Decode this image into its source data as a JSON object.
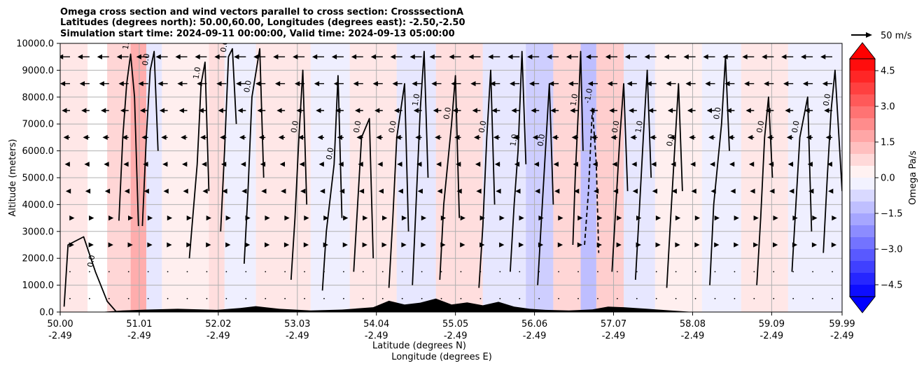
{
  "chart_data": {
    "type": "contour-cross-section",
    "title_lines": [
      "Omega cross section and wind vectors parallel to cross section: CrosssectionA",
      "Latitudes (degrees north): 50.00,60.00, Longitudes (degrees east): -2.50,-2.50",
      "Simulation start time: 2024-09-11 00:00:00, Valid time: 2024-09-13 05:00:00"
    ],
    "xlabel_lines": [
      "Latitude (degrees N)",
      "Longitude (degrees E)"
    ],
    "ylabel": "Altitude (meters)",
    "x_range": [
      50.0,
      59.99
    ],
    "x_ticks": [
      {
        "lat": "50.00",
        "lon": "-2.49",
        "value": 50.0
      },
      {
        "lat": "51.01",
        "lon": "-2.49",
        "value": 51.01
      },
      {
        "lat": "52.02",
        "lon": "-2.49",
        "value": 52.02
      },
      {
        "lat": "53.03",
        "lon": "-2.49",
        "value": 53.03
      },
      {
        "lat": "54.04",
        "lon": "-2.49",
        "value": 54.04
      },
      {
        "lat": "55.05",
        "lon": "-2.49",
        "value": 55.05
      },
      {
        "lat": "56.06",
        "lon": "-2.49",
        "value": 56.06
      },
      {
        "lat": "57.07",
        "lon": "-2.49",
        "value": 57.07
      },
      {
        "lat": "58.08",
        "lon": "-2.49",
        "value": 58.08
      },
      {
        "lat": "59.09",
        "lon": "-2.49",
        "value": 59.09
      },
      {
        "lat": "59.99",
        "lon": "-2.49",
        "value": 59.99
      }
    ],
    "y_range": [
      0,
      10000
    ],
    "y_ticks": [
      {
        "label": "0.0",
        "value": 0
      },
      {
        "label": "1000.0",
        "value": 1000
      },
      {
        "label": "2000.0",
        "value": 2000
      },
      {
        "label": "3000.0",
        "value": 3000
      },
      {
        "label": "4000.0",
        "value": 4000
      },
      {
        "label": "5000.0",
        "value": 5000
      },
      {
        "label": "6000.0",
        "value": 6000
      },
      {
        "label": "7000.0",
        "value": 7000
      },
      {
        "label": "8000.0",
        "value": 8000
      },
      {
        "label": "9000.0",
        "value": 9000
      },
      {
        "label": "10000.0",
        "value": 10000
      }
    ],
    "grid": true,
    "colorbar": {
      "label": "Omega Pa/s",
      "range": [
        -5.0,
        5.0
      ],
      "step": 0.5,
      "colormap": "bwr",
      "extend": "both",
      "ticks": [
        {
          "label": "4.5",
          "value": 4.5
        },
        {
          "label": "3.0",
          "value": 3.0
        },
        {
          "label": "1.5",
          "value": 1.5
        },
        {
          "label": "0.0",
          "value": 0.0
        },
        {
          "label": "−1.5",
          "value": -1.5
        },
        {
          "label": "−3.0",
          "value": -3.0
        },
        {
          "label": "−4.5",
          "value": -4.5
        }
      ]
    },
    "quiver_key": {
      "label": "50 m/s",
      "value": 50
    },
    "contour_labels": [
      "0.0",
      "1.0",
      "-1.0"
    ],
    "fill_bands": [
      {
        "x0": 50.0,
        "x1": 50.35,
        "omega": 0.3
      },
      {
        "x0": 50.35,
        "x1": 50.6,
        "omega": 0.0
      },
      {
        "x0": 50.6,
        "x1": 50.9,
        "omega": 0.5
      },
      {
        "x0": 50.9,
        "x1": 51.1,
        "omega": 1.0
      },
      {
        "x0": 51.1,
        "x1": 51.3,
        "omega": -0.3
      },
      {
        "x0": 51.3,
        "x1": 51.9,
        "omega": 0.2
      },
      {
        "x0": 51.9,
        "x1": 52.1,
        "omega": 0.4
      },
      {
        "x0": 52.1,
        "x1": 52.5,
        "omega": -0.2
      },
      {
        "x0": 52.5,
        "x1": 53.2,
        "omega": 0.3
      },
      {
        "x0": 53.2,
        "x1": 53.7,
        "omega": -0.2
      },
      {
        "x0": 53.7,
        "x1": 54.3,
        "omega": 0.3
      },
      {
        "x0": 54.3,
        "x1": 54.8,
        "omega": -0.3
      },
      {
        "x0": 54.8,
        "x1": 55.4,
        "omega": 0.4
      },
      {
        "x0": 55.4,
        "x1": 55.95,
        "omega": -0.3
      },
      {
        "x0": 55.95,
        "x1": 56.3,
        "omega": -0.6
      },
      {
        "x0": 56.3,
        "x1": 56.65,
        "omega": 0.5
      },
      {
        "x0": 56.65,
        "x1": 56.85,
        "omega": -0.8
      },
      {
        "x0": 56.85,
        "x1": 57.2,
        "omega": 0.6
      },
      {
        "x0": 57.2,
        "x1": 57.6,
        "omega": -0.3
      },
      {
        "x0": 57.6,
        "x1": 58.2,
        "omega": 0.2
      },
      {
        "x0": 58.2,
        "x1": 58.7,
        "omega": -0.2
      },
      {
        "x0": 58.7,
        "x1": 59.3,
        "omega": 0.3
      },
      {
        "x0": 59.3,
        "x1": 59.99,
        "omega": -0.2
      }
    ],
    "contour_lines": [
      {
        "level": 0.0,
        "x": [
          50.05,
          50.1,
          50.3,
          50.45,
          50.6,
          50.72
        ],
        "y": [
          200,
          2500,
          2800,
          1500,
          400,
          0
        ]
      },
      {
        "level": 1.0,
        "x": [
          50.75,
          50.8,
          50.85,
          50.9,
          50.95,
          51.0
        ],
        "y": [
          3400,
          6500,
          8500,
          9600,
          8000,
          3200
        ]
      },
      {
        "level": 0.0,
        "x": [
          51.05,
          51.1,
          51.15,
          51.2,
          51.25
        ],
        "y": [
          3200,
          6500,
          9000,
          9700,
          6000
        ]
      },
      {
        "level": 1.0,
        "x": [
          51.65,
          51.75,
          51.8,
          51.85,
          51.9
        ],
        "y": [
          2000,
          5500,
          8500,
          9300,
          4500
        ]
      },
      {
        "level": 0.0,
        "x": [
          52.05,
          52.1,
          52.15,
          52.2,
          52.25
        ],
        "y": [
          3000,
          6000,
          9500,
          9800,
          7000
        ]
      },
      {
        "level": 0.0,
        "x": [
          52.35,
          52.4,
          52.45,
          52.55,
          52.6
        ],
        "y": [
          1800,
          4500,
          8000,
          9800,
          5000
        ]
      },
      {
        "level": 0.0,
        "x": [
          52.95,
          53.0,
          53.05,
          53.1,
          53.15
        ],
        "y": [
          1200,
          3500,
          6500,
          9000,
          4000
        ]
      },
      {
        "level": 0.0,
        "x": [
          53.35,
          53.4,
          53.5,
          53.55,
          53.6
        ],
        "y": [
          800,
          3000,
          5500,
          8800,
          3500
        ]
      },
      {
        "level": 0.0,
        "x": [
          53.75,
          53.8,
          53.85,
          53.95,
          54.0
        ],
        "y": [
          1500,
          4000,
          6500,
          7200,
          2000
        ]
      },
      {
        "level": 0.0,
        "x": [
          54.2,
          54.25,
          54.3,
          54.4,
          54.45
        ],
        "y": [
          900,
          3500,
          6500,
          8500,
          3000
        ]
      },
      {
        "level": 1.0,
        "x": [
          54.5,
          54.55,
          54.6,
          54.65,
          54.7
        ],
        "y": [
          1000,
          4200,
          7500,
          9700,
          5000
        ]
      },
      {
        "level": 0.0,
        "x": [
          54.85,
          54.9,
          55.0,
          55.05,
          55.1
        ],
        "y": [
          1200,
          4000,
          7000,
          8800,
          3500
        ]
      },
      {
        "level": 0.0,
        "x": [
          55.35,
          55.4,
          55.45,
          55.5,
          55.55
        ],
        "y": [
          900,
          3200,
          6500,
          9000,
          4000
        ]
      },
      {
        "level": 1.0,
        "x": [
          55.75,
          55.8,
          55.85,
          55.9,
          55.95
        ],
        "y": [
          1500,
          4000,
          6000,
          9700,
          5500
        ]
      },
      {
        "level": 0.0,
        "x": [
          56.1,
          56.15,
          56.2,
          56.25,
          56.3
        ],
        "y": [
          1000,
          3500,
          6000,
          8500,
          4000
        ]
      },
      {
        "level": 1.0,
        "x": [
          56.55,
          56.58,
          56.62,
          56.65,
          56.68
        ],
        "y": [
          2500,
          5000,
          7500,
          9700,
          6000
        ]
      },
      {
        "level": -1.0,
        "x": [
          56.7,
          56.75,
          56.8,
          56.85,
          56.88
        ],
        "y": [
          2500,
          4500,
          7600,
          5500,
          2200
        ]
      },
      {
        "level": 0.0,
        "x": [
          57.05,
          57.1,
          57.15,
          57.2,
          57.25
        ],
        "y": [
          1500,
          4000,
          6500,
          8500,
          4500
        ]
      },
      {
        "level": 1.0,
        "x": [
          57.35,
          57.4,
          57.45,
          57.5,
          57.55
        ],
        "y": [
          1200,
          3800,
          6500,
          9000,
          5000
        ]
      },
      {
        "level": 0.0,
        "x": [
          57.75,
          57.8,
          57.85,
          57.9,
          57.95
        ],
        "y": [
          900,
          3500,
          6000,
          8500,
          4500
        ]
      },
      {
        "level": 0.0,
        "x": [
          58.3,
          58.35,
          58.45,
          58.5,
          58.55
        ],
        "y": [
          1000,
          4000,
          7000,
          9500,
          6000
        ]
      },
      {
        "level": 0.0,
        "x": [
          58.9,
          58.95,
          59.0,
          59.05,
          59.1
        ],
        "y": [
          1000,
          3500,
          6500,
          8000,
          5000
        ]
      },
      {
        "level": 0.0,
        "x": [
          59.35,
          59.4,
          59.45,
          59.55,
          59.6
        ],
        "y": [
          1500,
          4000,
          6500,
          8000,
          3000
        ]
      },
      {
        "level": 0.0,
        "x": [
          59.75,
          59.8,
          59.85,
          59.9,
          59.99
        ],
        "y": [
          2200,
          5000,
          7500,
          9000,
          4500
        ]
      }
    ],
    "terrain": {
      "x": [
        50.0,
        50.5,
        50.8,
        51.1,
        51.5,
        52.0,
        52.3,
        52.5,
        52.8,
        53.2,
        53.6,
        54.0,
        54.2,
        54.4,
        54.6,
        54.8,
        55.0,
        55.2,
        55.4,
        55.6,
        55.8,
        56.0,
        56.2,
        56.5,
        56.8,
        57.0,
        57.2,
        57.5,
        57.8,
        58.1,
        58.5,
        59.0,
        59.5,
        59.99
      ],
      "height": [
        0,
        0,
        60,
        90,
        120,
        80,
        150,
        220,
        120,
        60,
        90,
        180,
        420,
        280,
        350,
        500,
        280,
        360,
        250,
        380,
        200,
        120,
        80,
        60,
        100,
        200,
        180,
        120,
        60,
        0,
        0,
        0,
        0,
        0
      ]
    },
    "wind_vectors": {
      "levels_m": [
        500,
        1500,
        2500,
        3500,
        4500,
        5500,
        6500,
        7500,
        8500,
        9500
      ],
      "u_ms_by_level": [
        0,
        2,
        3,
        4,
        -3,
        -6,
        -10,
        -15,
        -20,
        -26
      ]
    }
  }
}
